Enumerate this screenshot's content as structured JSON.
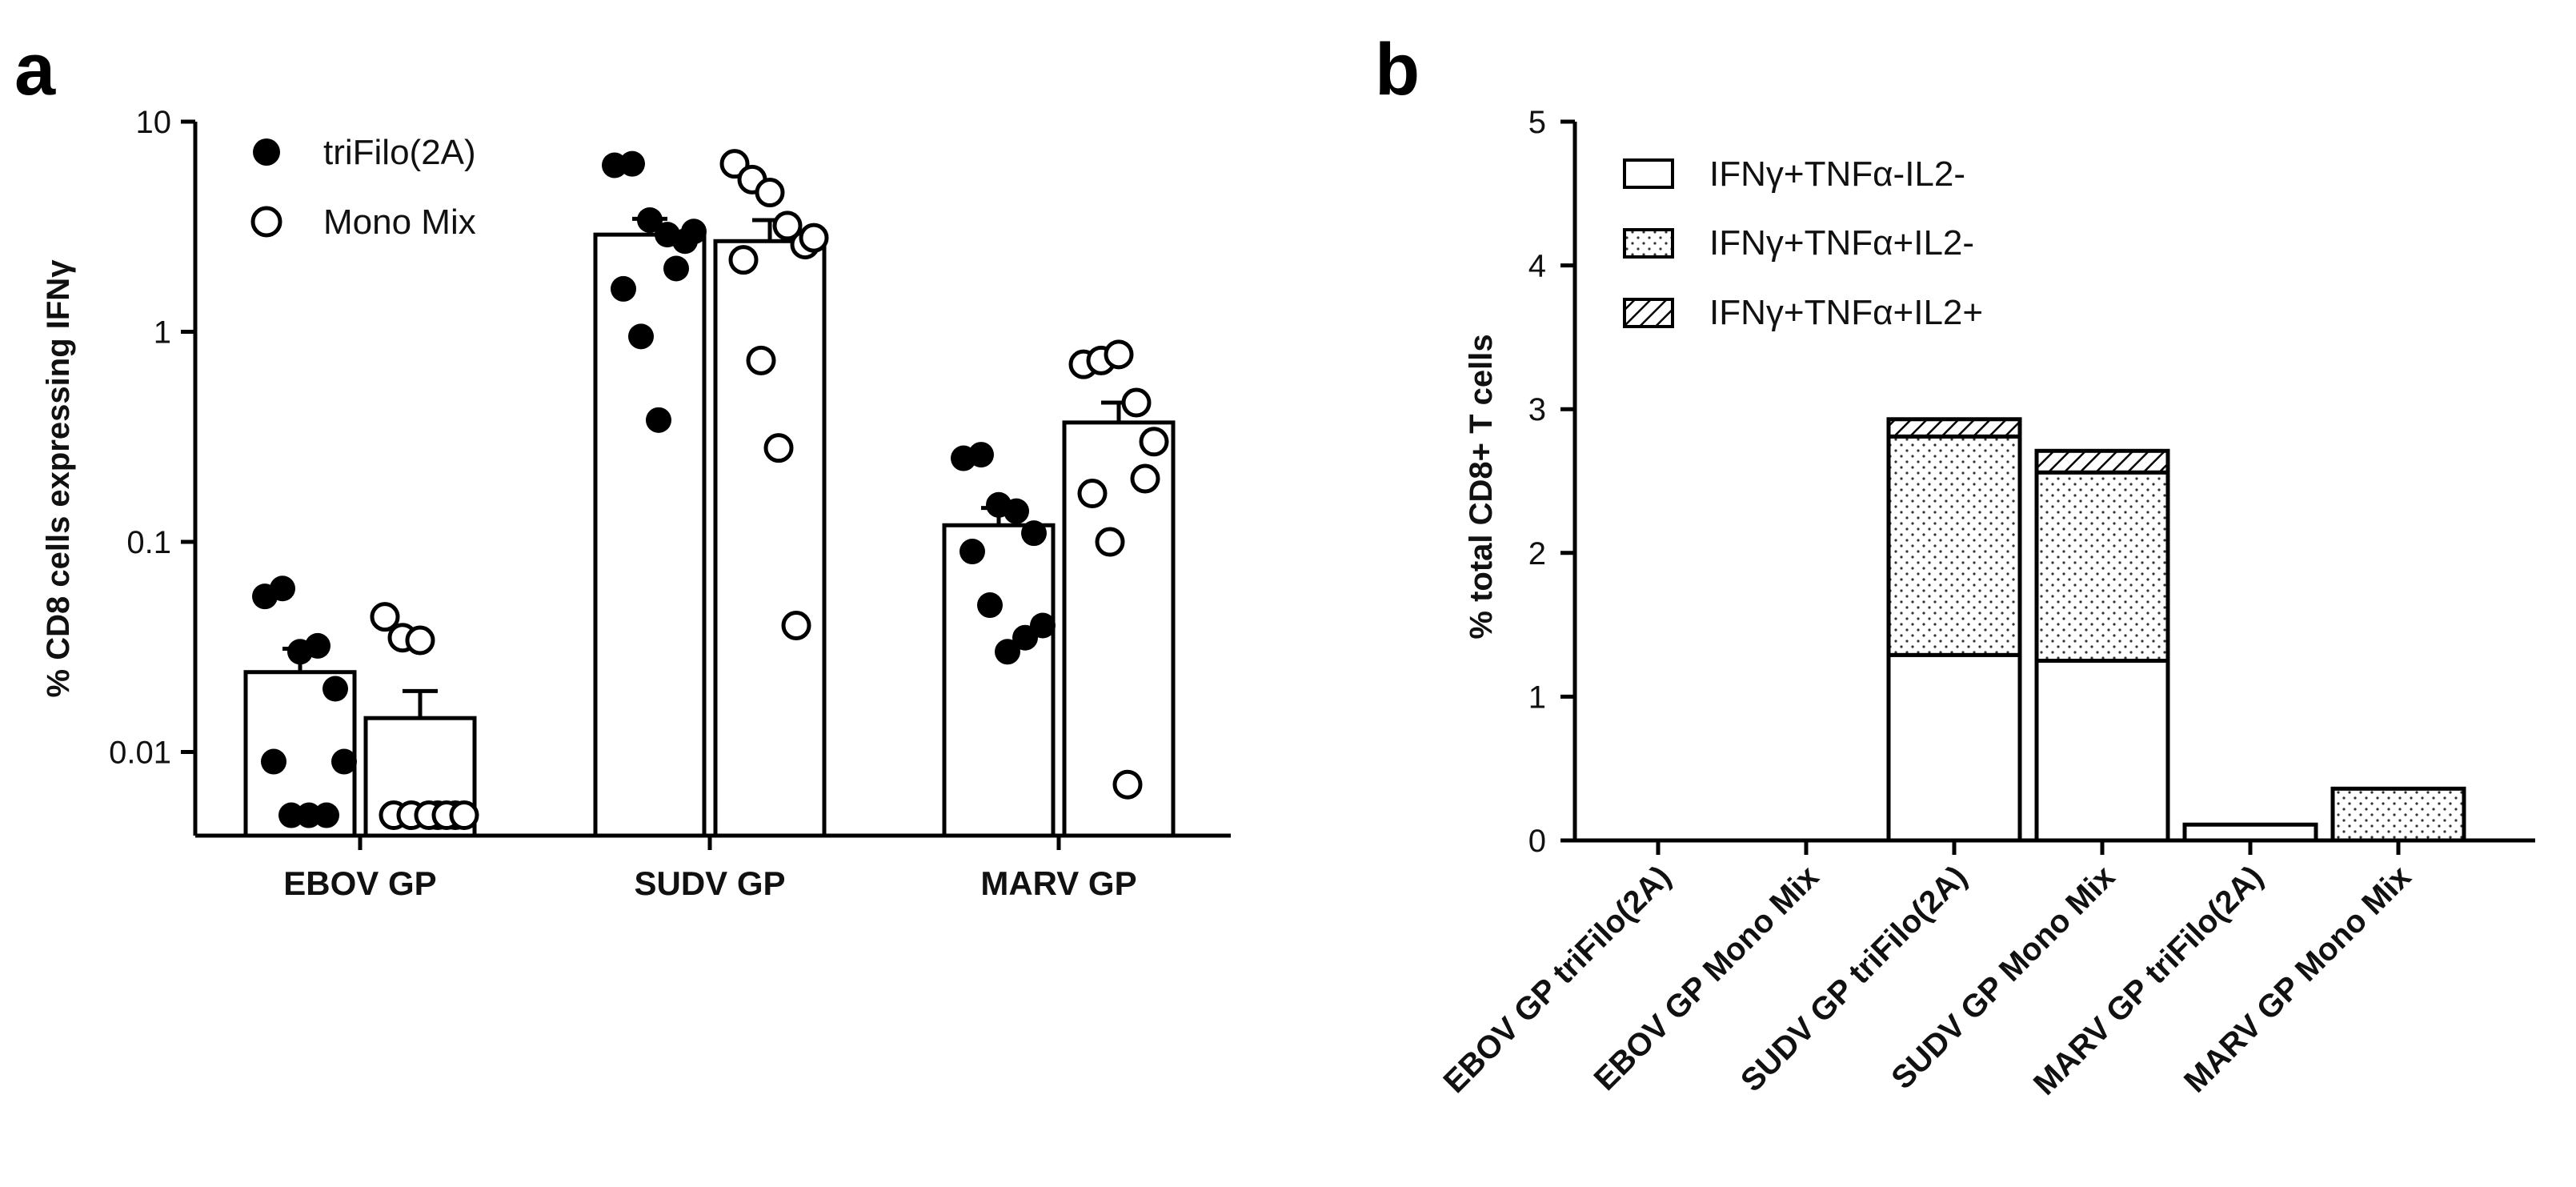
{
  "chart_data": [
    {
      "panel": "a",
      "type": "bar",
      "scale": "log",
      "ylabel": "% CD8 cells expressing IFNγ",
      "yticks": [
        "0.01",
        "0.1",
        "1",
        "10"
      ],
      "ytick_values": [
        0.01,
        0.1,
        1,
        10
      ],
      "ylim": [
        0.004,
        10
      ],
      "categories": [
        "EBOV GP",
        "SUDV GP",
        "MARV GP"
      ],
      "legend": [
        {
          "name": "triFilo(2A)",
          "marker": "filled-circle"
        },
        {
          "name": "Mono Mix",
          "marker": "open-circle"
        }
      ],
      "series": [
        {
          "name": "triFilo(2A)",
          "means": [
            0.024,
            2.9,
            0.12
          ],
          "sem": [
            0.007,
            0.55,
            0.025
          ],
          "points": [
            [
              0.055,
              0.06,
              0.03,
              0.032,
              0.02,
              0.009,
              0.005,
              0.005,
              0.005,
              0.009
            ],
            [
              6.2,
              6.3,
              3.4,
              2.9,
              2.7,
              1.6,
              0.95,
              0.38,
              2.0,
              3.0
            ],
            [
              0.25,
              0.26,
              0.15,
              0.14,
              0.11,
              0.09,
              0.05,
              0.03,
              0.035,
              0.04
            ]
          ]
        },
        {
          "name": "Mono Mix",
          "means": [
            0.0145,
            2.7,
            0.37
          ],
          "sem": [
            0.005,
            0.7,
            0.09
          ],
          "points": [
            [
              0.044,
              0.035,
              0.034,
              0.005,
              0.005,
              0.005,
              0.005,
              0.005,
              0.005,
              0.005
            ],
            [
              6.3,
              5.3,
              4.6,
              3.2,
              2.6,
              2.2,
              0.73,
              0.28,
              0.04,
              2.8
            ],
            [
              0.7,
              0.73,
              0.78,
              0.46,
              0.3,
              0.17,
              0.1,
              0.007,
              0.2
            ]
          ]
        }
      ]
    },
    {
      "panel": "b",
      "type": "bar",
      "stacked": true,
      "ylabel": "% total CD8+ T cells",
      "yticks": [
        "0",
        "1",
        "2",
        "3",
        "4",
        "5"
      ],
      "ylim": [
        0,
        5
      ],
      "categories": [
        "EBOV GP triFilo(2A)",
        "EBOV GP Mono Mix",
        "SUDV GP triFilo(2A)",
        "SUDV GP Mono Mix",
        "MARV GP triFilo(2A)",
        "MARV GP Mono Mix"
      ],
      "series": [
        {
          "name": "IFNγ+TNFα-IL2-",
          "pattern": "open",
          "values": [
            0,
            0,
            1.29,
            1.25,
            0.11,
            0.0
          ]
        },
        {
          "name": "IFNγ+TNFα+IL2-",
          "pattern": "dotted",
          "values": [
            0,
            0,
            1.52,
            1.31,
            0.0,
            0.36
          ]
        },
        {
          "name": "IFNγ+TNFα+IL2+",
          "pattern": "hatched",
          "values": [
            0,
            0,
            0.12,
            0.15,
            0.0,
            0.0
          ]
        }
      ]
    }
  ]
}
